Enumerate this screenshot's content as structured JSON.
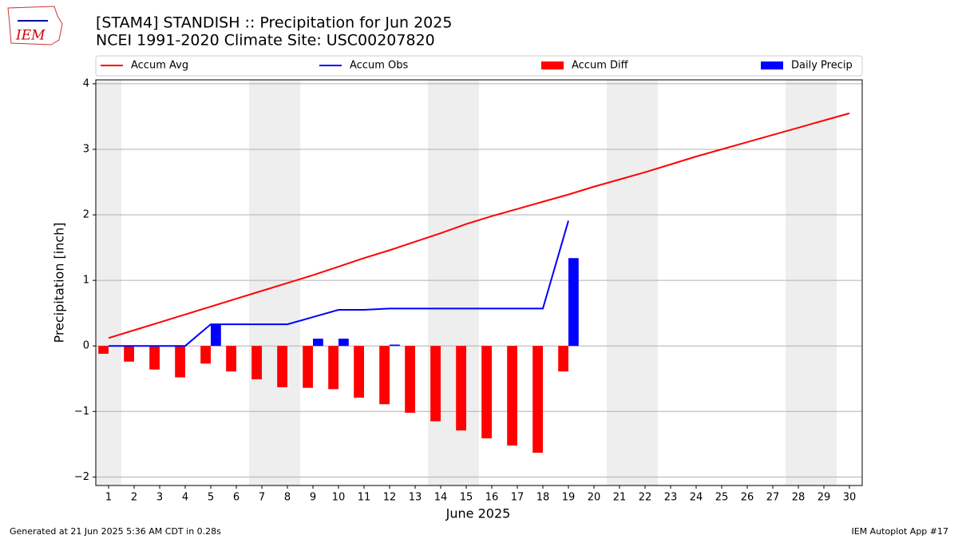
{
  "logo_text": "IEM",
  "footer_left": "Generated at 21 Jun 2025 5:36 AM CDT in 0.28s",
  "footer_right": "IEM Autoplot App #17",
  "chart_data": {
    "type": "combo",
    "title": "[STAM4] STANDISH :: Precipitation for Jun 2025",
    "subtitle": "NCEI 1991-2020 Climate Site: USC00207820",
    "x_label": "June 2025",
    "y_label": "Precipitation [inch]",
    "x": [
      1,
      2,
      3,
      4,
      5,
      6,
      7,
      8,
      9,
      10,
      11,
      12,
      13,
      14,
      15,
      16,
      17,
      18,
      19,
      20,
      21,
      22,
      23,
      24,
      25,
      26,
      27,
      28,
      29,
      30
    ],
    "xlim": [
      0.5,
      30.5
    ],
    "xticks": [
      1,
      2,
      3,
      4,
      5,
      6,
      7,
      8,
      9,
      10,
      11,
      12,
      13,
      14,
      15,
      16,
      17,
      18,
      19,
      20,
      21,
      22,
      23,
      24,
      25,
      26,
      27,
      28,
      29,
      30
    ],
    "ylim": [
      -2.13,
      4.06
    ],
    "yticks": [
      {
        "value": -2,
        "label": "−2"
      },
      {
        "value": -1,
        "label": "−1"
      },
      0,
      1,
      2,
      3,
      4
    ],
    "grid": true,
    "series": [
      {
        "name": "Accum Avg",
        "type": "line",
        "color": "#ff0000",
        "values": [
          0.12,
          0.24,
          0.36,
          0.48,
          0.6,
          0.72,
          0.84,
          0.96,
          1.08,
          1.21,
          1.34,
          1.46,
          1.59,
          1.72,
          1.86,
          1.98,
          2.09,
          2.2,
          2.31,
          2.43,
          2.54,
          2.65,
          2.77,
          2.89,
          3.0,
          3.11,
          3.22,
          3.33,
          3.44,
          3.55
        ]
      },
      {
        "name": "Accum Obs",
        "type": "line",
        "color": "#0000ff",
        "values": [
          0,
          0,
          0,
          0,
          0.33,
          0.33,
          0.33,
          0.33,
          0.44,
          0.55,
          0.55,
          0.57,
          0.57,
          0.57,
          0.57,
          0.57,
          0.57,
          0.57,
          1.91,
          null,
          null,
          null,
          null,
          null,
          null,
          null,
          null,
          null,
          null,
          null
        ]
      },
      {
        "name": "Accum Diff",
        "type": "bar",
        "color": "#ff0000",
        "values": [
          -0.12,
          -0.24,
          -0.36,
          -0.48,
          -0.27,
          -0.39,
          -0.51,
          -0.63,
          -0.64,
          -0.66,
          -0.79,
          -0.89,
          -1.02,
          -1.15,
          -1.29,
          -1.41,
          -1.52,
          -1.63,
          -0.39,
          null,
          null,
          null,
          null,
          null,
          null,
          null,
          null,
          null,
          null,
          null
        ]
      },
      {
        "name": "Daily Precip",
        "type": "bar",
        "color": "#0000ff",
        "values": [
          0,
          0,
          0,
          0,
          0.33,
          0,
          0,
          0,
          0.11,
          0.11,
          0,
          0.02,
          0,
          0,
          0,
          0,
          0,
          0,
          1.34,
          null,
          null,
          null,
          null,
          null,
          null,
          null,
          null,
          null,
          null,
          null
        ]
      }
    ]
  }
}
